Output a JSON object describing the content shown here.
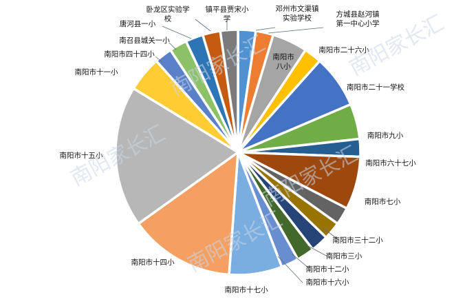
{
  "watermark": "南阳家长汇",
  "chart_data": {
    "type": "pie",
    "title": "",
    "start_angle_deg": 0,
    "direction": "clockwise",
    "slices": [
      {
        "label": "邓州市文渠镇实验学校",
        "value": 1,
        "color": "#4f91d1"
      },
      {
        "label": "方城县赵河镇第一中心小学",
        "value": 1,
        "color": "#ed7d31"
      },
      {
        "label": "南阳市八小",
        "value": 2,
        "color": "#a5a5a5"
      },
      {
        "label": "南阳市二十六小",
        "value": 1,
        "color": "#ffc000"
      },
      {
        "label": "南阳市二十一学校",
        "value": 3,
        "color": "#4472c4"
      },
      {
        "label": "南阳市九小",
        "value": 2,
        "color": "#70ad47"
      },
      {
        "label": "南阳市六十七小",
        "value": 1,
        "color": "#255e91"
      },
      {
        "label": "南阳市七小",
        "value": 3,
        "color": "#9e480e"
      },
      {
        "label": "",
        "value": 1,
        "color": "#636363"
      },
      {
        "label": "南阳市三十二小",
        "value": 1,
        "color": "#997300"
      },
      {
        "label": "南阳市三小",
        "value": 1,
        "color": "#264478"
      },
      {
        "label": "南阳市十二小",
        "value": 1,
        "color": "#43682b"
      },
      {
        "label": "南阳市十六小",
        "value": 1,
        "color": "#698ed0"
      },
      {
        "label": "南阳市十七小",
        "value": 3,
        "color": "#7aaee0"
      },
      {
        "label": "南阳市十四小",
        "value": 6,
        "color": "#f4a063"
      },
      {
        "label": "南阳市十五小",
        "value": 8,
        "color": "#b7b7b7"
      },
      {
        "label": "南阳市十一小",
        "value": 2,
        "color": "#ffcd33"
      },
      {
        "label": "南阳市四十四小",
        "value": 1,
        "color": "#5a80c8"
      },
      {
        "label": "南召县城关一小",
        "value": 1,
        "color": "#8cc168"
      },
      {
        "label": "唐河县一小",
        "value": 1,
        "color": "#2e75b6"
      },
      {
        "label": "卧龙区实验学校",
        "value": 1,
        "color": "#c55a11"
      },
      {
        "label": "镇平县贾宋小学",
        "value": 1,
        "color": "#7b7b7b"
      }
    ]
  }
}
